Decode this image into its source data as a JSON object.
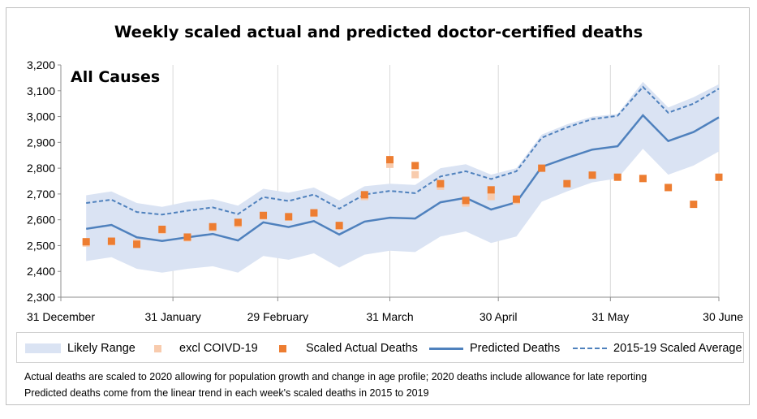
{
  "chart_data": {
    "type": "line",
    "title": "Weekly scaled actual and predicted doctor-certified deaths",
    "panel_label": "All Causes",
    "ylim": [
      2300,
      3200
    ],
    "yticks": [
      2300,
      2400,
      2500,
      2600,
      2700,
      2800,
      2900,
      3000,
      3100,
      3200
    ],
    "ytick_labels": [
      "2,300",
      "2,400",
      "2,500",
      "2,600",
      "2,700",
      "2,800",
      "2,900",
      "3,000",
      "3,100",
      "3,200"
    ],
    "xlim": [
      0,
      26
    ],
    "xticks": [
      {
        "x": 0,
        "label": "31 December"
      },
      {
        "x": 4.4286,
        "label": "31 January"
      },
      {
        "x": 8.5714,
        "label": "29 February"
      },
      {
        "x": 13,
        "label": "31 March"
      },
      {
        "x": 17.2857,
        "label": "30 April"
      },
      {
        "x": 21.7143,
        "label": "31 May"
      },
      {
        "x": 26,
        "label": "30 June"
      }
    ],
    "x": [
      1,
      2,
      3,
      4,
      5,
      6,
      7,
      8,
      9,
      10,
      11,
      12,
      13,
      14,
      15,
      16,
      17,
      18,
      19,
      20,
      21,
      22,
      23,
      24,
      25,
      26
    ],
    "series": [
      {
        "name": "Likely Range",
        "kind": "band",
        "color": "#dae3f3",
        "upper": [
          2695,
          2710,
          2665,
          2650,
          2670,
          2680,
          2655,
          2720,
          2705,
          2725,
          2675,
          2730,
          2740,
          2735,
          2800,
          2815,
          2775,
          2800,
          2930,
          2970,
          3000,
          3010,
          3135,
          3035,
          3075,
          3125
        ],
        "lower": [
          2440,
          2455,
          2410,
          2395,
          2410,
          2420,
          2395,
          2460,
          2445,
          2470,
          2415,
          2465,
          2480,
          2475,
          2535,
          2555,
          2510,
          2535,
          2670,
          2710,
          2745,
          2760,
          2875,
          2775,
          2810,
          2865
        ]
      },
      {
        "name": "excl COIVD-19",
        "kind": "points",
        "color": "#f8cbad",
        "values": [
          2510,
          2515,
          2510,
          2560,
          2530,
          2570,
          2585,
          2615,
          2610,
          2625,
          2575,
          2690,
          2815,
          2775,
          2730,
          2665,
          2690,
          2675,
          null,
          null,
          null,
          null,
          null,
          null,
          null,
          null
        ]
      },
      {
        "name": "Scaled Actual Deaths",
        "kind": "points",
        "color": "#ed7d31",
        "values": [
          2515,
          2517,
          2505,
          2563,
          2533,
          2573,
          2590,
          2617,
          2612,
          2627,
          2578,
          2697,
          2833,
          2810,
          2740,
          2675,
          2716,
          2680,
          2800,
          2740,
          2773,
          2765,
          2760,
          2725,
          2660,
          2765
        ]
      },
      {
        "name": "Predicted Deaths",
        "kind": "line",
        "color": "#4f81bd",
        "values": [
          2565,
          2580,
          2532,
          2518,
          2532,
          2545,
          2520,
          2590,
          2572,
          2595,
          2543,
          2593,
          2608,
          2605,
          2668,
          2685,
          2640,
          2668,
          2805,
          2840,
          2872,
          2885,
          3005,
          2905,
          2940,
          2997
        ]
      },
      {
        "name": "2015-19 Scaled Average",
        "kind": "dashed",
        "color": "#4f81bd",
        "values": [
          2665,
          2678,
          2630,
          2620,
          2635,
          2648,
          2622,
          2688,
          2673,
          2698,
          2643,
          2698,
          2712,
          2703,
          2768,
          2788,
          2758,
          2788,
          2918,
          2958,
          2990,
          3003,
          3115,
          3015,
          3050,
          3108
        ]
      }
    ],
    "grid": "vertical",
    "legend_position": "bottom"
  },
  "notes": [
    "Actual deaths are scaled to 2020 allowing for population growth and change in age profile; 2020 deaths include allowance for late reporting",
    "Predicted deaths come from the linear trend in each week's scaled deaths in 2015 to 2019"
  ]
}
